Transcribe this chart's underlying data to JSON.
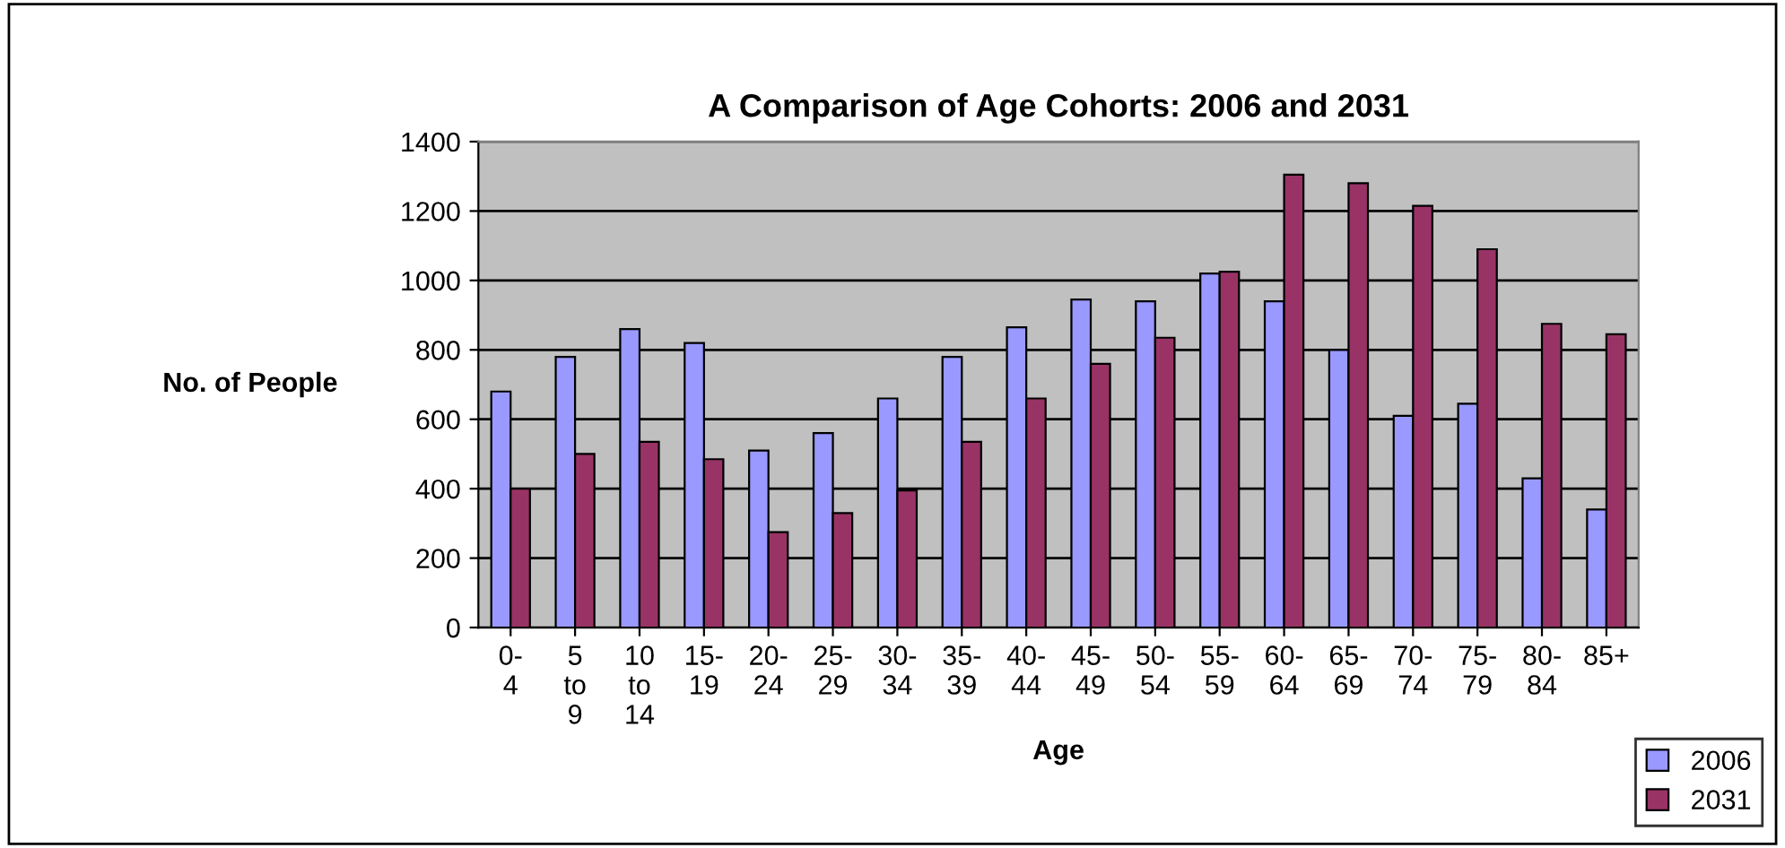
{
  "chart_data": {
    "type": "bar",
    "title": "A Comparison of Age Cohorts: 2006 and 2031",
    "xlabel": "Age",
    "ylabel": "No. of People",
    "categories": [
      "0-4",
      "5 to 9",
      "10 to 14",
      "15-19",
      "20-24",
      "25-29",
      "30-34",
      "35-39",
      "40-44",
      "45-49",
      "50-54",
      "55-59",
      "60-64",
      "65-69",
      "70-74",
      "75-79",
      "80-84",
      "85+"
    ],
    "series": [
      {
        "name": "2006",
        "color": "#9999ff",
        "values": [
          680,
          780,
          860,
          820,
          510,
          560,
          660,
          780,
          865,
          945,
          940,
          1020,
          940,
          800,
          610,
          645,
          430,
          340
        ]
      },
      {
        "name": "2031",
        "color": "#993366",
        "values": [
          400,
          500,
          535,
          485,
          275,
          330,
          395,
          535,
          660,
          760,
          835,
          1025,
          1305,
          1280,
          1215,
          1090,
          875,
          845
        ]
      }
    ],
    "ylim": [
      0,
      1400
    ],
    "yticks": [
      0,
      200,
      400,
      600,
      800,
      1000,
      1200,
      1400
    ],
    "grid": "y",
    "legend": "bottom right"
  }
}
